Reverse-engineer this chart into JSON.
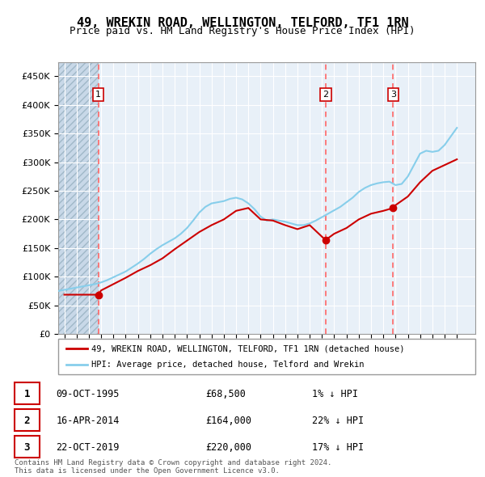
{
  "title": "49, WREKIN ROAD, WELLINGTON, TELFORD, TF1 1RN",
  "subtitle": "Price paid vs. HM Land Registry's House Price Index (HPI)",
  "legend_line1": "49, WREKIN ROAD, WELLINGTON, TELFORD, TF1 1RN (detached house)",
  "legend_line2": "HPI: Average price, detached house, Telford and Wrekin",
  "copyright": "Contains HM Land Registry data © Crown copyright and database right 2024.\nThis data is licensed under the Open Government Licence v3.0.",
  "sales": [
    {
      "num": 1,
      "date": "09-OCT-1995",
      "price": 68500,
      "x": 1995.77,
      "hpi_pct": "1% ↓ HPI"
    },
    {
      "num": 2,
      "date": "16-APR-2014",
      "price": 164000,
      "x": 2014.29,
      "hpi_pct": "22% ↓ HPI"
    },
    {
      "num": 3,
      "date": "22-OCT-2019",
      "price": 220000,
      "x": 2019.81,
      "hpi_pct": "17% ↓ HPI"
    }
  ],
  "hpi_color": "#87CEEB",
  "price_color": "#CC0000",
  "dashed_color": "#FF6666",
  "background_plot": "#E8F0F8",
  "hatch_color": "#C8D8E8",
  "ylim": [
    0,
    475000
  ],
  "xlim": [
    1992.5,
    2026.5
  ],
  "yticks": [
    0,
    50000,
    100000,
    150000,
    200000,
    250000,
    300000,
    350000,
    400000,
    450000
  ],
  "xticks": [
    1993,
    1994,
    1995,
    1996,
    1997,
    1998,
    1999,
    2000,
    2001,
    2002,
    2003,
    2004,
    2005,
    2006,
    2007,
    2008,
    2009,
    2010,
    2011,
    2012,
    2013,
    2014,
    2015,
    2016,
    2017,
    2018,
    2019,
    2020,
    2021,
    2022,
    2023,
    2024,
    2025
  ],
  "hpi_data_x": [
    1992.5,
    1993,
    1993.5,
    1994,
    1994.5,
    1995,
    1995.5,
    1996,
    1996.5,
    1997,
    1997.5,
    1998,
    1998.5,
    1999,
    1999.5,
    2000,
    2000.5,
    2001,
    2001.5,
    2002,
    2002.5,
    2003,
    2003.5,
    2004,
    2004.5,
    2005,
    2005.5,
    2006,
    2006.5,
    2007,
    2007.5,
    2008,
    2008.5,
    2009,
    2009.5,
    2010,
    2010.5,
    2011,
    2011.5,
    2012,
    2012.5,
    2013,
    2013.5,
    2014,
    2014.5,
    2015,
    2015.5,
    2016,
    2016.5,
    2017,
    2017.5,
    2018,
    2018.5,
    2019,
    2019.5,
    2020,
    2020.5,
    2021,
    2021.5,
    2022,
    2022.5,
    2023,
    2023.5,
    2024,
    2024.5,
    2025
  ],
  "hpi_data_y": [
    75000,
    77000,
    79000,
    81000,
    83000,
    85000,
    87000,
    90000,
    94000,
    99000,
    104000,
    109000,
    116000,
    123000,
    131000,
    140000,
    148000,
    155000,
    161000,
    167000,
    175000,
    185000,
    198000,
    212000,
    222000,
    228000,
    230000,
    232000,
    236000,
    238000,
    235000,
    228000,
    218000,
    205000,
    198000,
    200000,
    198000,
    196000,
    193000,
    190000,
    190000,
    193000,
    198000,
    204000,
    210000,
    216000,
    222000,
    230000,
    238000,
    248000,
    255000,
    260000,
    263000,
    265000,
    266000,
    260000,
    262000,
    275000,
    295000,
    315000,
    320000,
    318000,
    320000,
    330000,
    345000,
    360000
  ],
  "price_data_x": [
    1993,
    1993.5,
    1994,
    1994.5,
    1995,
    1995.77,
    1996,
    1997,
    1998,
    1999,
    2000,
    2001,
    2002,
    2003,
    2004,
    2005,
    2006,
    2007,
    2008,
    2009,
    2010,
    2011,
    2012,
    2013,
    2014.29,
    2015,
    2016,
    2017,
    2018,
    2019,
    2019.81,
    2020,
    2021,
    2022,
    2023,
    2024,
    2025
  ],
  "price_data_y": [
    68500,
    68500,
    68500,
    68500,
    68500,
    68500,
    76000,
    87000,
    98000,
    110000,
    120000,
    132000,
    148000,
    163000,
    178000,
    190000,
    200000,
    215000,
    220000,
    200000,
    198000,
    190000,
    183000,
    190000,
    164000,
    175000,
    185000,
    200000,
    210000,
    215000,
    220000,
    225000,
    240000,
    265000,
    285000,
    295000,
    305000
  ]
}
